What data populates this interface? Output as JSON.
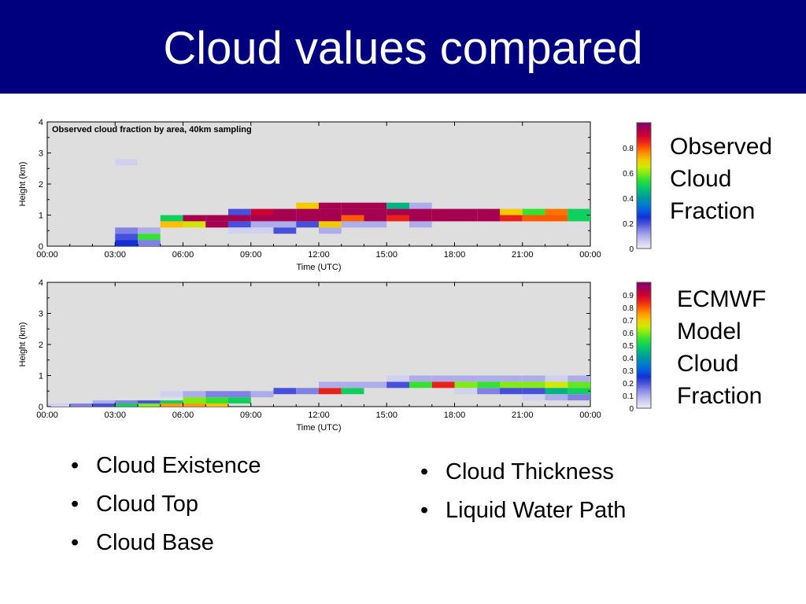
{
  "slide": {
    "title": "Cloud values compared"
  },
  "labels": {
    "observed": [
      "Observed",
      "Cloud",
      "Fraction"
    ],
    "ecmwf": [
      "ECMWF",
      "Model",
      "Cloud",
      "Fraction"
    ]
  },
  "bullets_left": [
    "Cloud Existence",
    "Cloud Top",
    "Cloud Base"
  ],
  "bullets_right": [
    "Cloud Thickness",
    "Liquid Water Path"
  ],
  "chart_data": [
    {
      "type": "heatmap",
      "title": "Observed cloud fraction by area, 40km sampling",
      "xlabel": "Time (UTC)",
      "ylabel": "Height (km)",
      "xlim": [
        0,
        24
      ],
      "ylim": [
        0,
        4
      ],
      "xticks": [
        "00:00",
        "03:00",
        "06:00",
        "09:00",
        "12:00",
        "15:00",
        "18:00",
        "21:00",
        "00:00"
      ],
      "yticks": [
        "0",
        "1",
        "2",
        "3",
        "4"
      ],
      "grid": false,
      "cell_width_hours": 1,
      "cells": [
        {
          "t": 3.5,
          "h": 2.6,
          "h2": 2.8,
          "v": 0.05
        },
        {
          "t": 3.5,
          "h": 0.4,
          "h2": 0.6,
          "v": 0.15
        },
        {
          "t": 3.5,
          "h": 0.2,
          "h2": 0.4,
          "v": 0.2
        },
        {
          "t": 3.5,
          "h": 0.0,
          "h2": 0.2,
          "v": 0.25
        },
        {
          "t": 4.5,
          "h": 0.4,
          "h2": 0.6,
          "v": 0.1
        },
        {
          "t": 4.5,
          "h": 0.2,
          "h2": 0.4,
          "v": 0.55
        },
        {
          "t": 4.5,
          "h": 0.0,
          "h2": 0.2,
          "v": 0.15
        },
        {
          "t": 5.5,
          "h": 0.8,
          "h2": 1.0,
          "v": 0.5
        },
        {
          "t": 5.5,
          "h": 0.6,
          "h2": 0.8,
          "v": 0.72
        },
        {
          "t": 6.5,
          "h": 0.8,
          "h2": 1.0,
          "v": 0.95
        },
        {
          "t": 6.5,
          "h": 0.6,
          "h2": 0.8,
          "v": 0.66
        },
        {
          "t": 7.5,
          "h": 0.8,
          "h2": 1.0,
          "v": 0.95
        },
        {
          "t": 7.5,
          "h": 0.6,
          "h2": 0.8,
          "v": 0.95
        },
        {
          "t": 8.5,
          "h": 1.0,
          "h2": 1.2,
          "v": 0.2
        },
        {
          "t": 8.5,
          "h": 0.8,
          "h2": 1.0,
          "v": 0.95
        },
        {
          "t": 8.5,
          "h": 0.6,
          "h2": 0.8,
          "v": 0.2
        },
        {
          "t": 8.5,
          "h": 0.4,
          "h2": 0.6,
          "v": 0.05
        },
        {
          "t": 9.5,
          "h": 1.0,
          "h2": 1.2,
          "v": 0.9
        },
        {
          "t": 9.5,
          "h": 0.8,
          "h2": 1.0,
          "v": 0.95
        },
        {
          "t": 9.5,
          "h": 0.6,
          "h2": 0.8,
          "v": 0.1
        },
        {
          "t": 9.5,
          "h": 0.4,
          "h2": 0.6,
          "v": 0.05
        },
        {
          "t": 10.5,
          "h": 1.0,
          "h2": 1.2,
          "v": 0.95
        },
        {
          "t": 10.5,
          "h": 0.8,
          "h2": 1.0,
          "v": 0.95
        },
        {
          "t": 10.5,
          "h": 0.6,
          "h2": 0.8,
          "v": 0.1
        },
        {
          "t": 10.5,
          "h": 0.4,
          "h2": 0.6,
          "v": 0.2
        },
        {
          "t": 11.5,
          "h": 1.2,
          "h2": 1.4,
          "v": 0.7
        },
        {
          "t": 11.5,
          "h": 1.0,
          "h2": 1.2,
          "v": 0.95
        },
        {
          "t": 11.5,
          "h": 0.8,
          "h2": 1.0,
          "v": 0.95
        },
        {
          "t": 11.5,
          "h": 0.6,
          "h2": 0.8,
          "v": 0.2
        },
        {
          "t": 12.5,
          "h": 1.2,
          "h2": 1.4,
          "v": 0.95
        },
        {
          "t": 12.5,
          "h": 1.0,
          "h2": 1.2,
          "v": 0.95
        },
        {
          "t": 12.5,
          "h": 0.8,
          "h2": 1.0,
          "v": 0.95
        },
        {
          "t": 12.5,
          "h": 0.6,
          "h2": 0.8,
          "v": 0.7
        },
        {
          "t": 12.5,
          "h": 0.4,
          "h2": 0.6,
          "v": 0.1
        },
        {
          "t": 13.5,
          "h": 1.2,
          "h2": 1.4,
          "v": 0.95
        },
        {
          "t": 13.5,
          "h": 1.0,
          "h2": 1.2,
          "v": 0.95
        },
        {
          "t": 13.5,
          "h": 0.8,
          "h2": 1.0,
          "v": 0.8
        },
        {
          "t": 13.5,
          "h": 0.6,
          "h2": 0.8,
          "v": 0.1
        },
        {
          "t": 14.5,
          "h": 1.2,
          "h2": 1.4,
          "v": 0.95
        },
        {
          "t": 14.5,
          "h": 1.0,
          "h2": 1.2,
          "v": 0.95
        },
        {
          "t": 14.5,
          "h": 0.8,
          "h2": 1.0,
          "v": 0.95
        },
        {
          "t": 14.5,
          "h": 0.6,
          "h2": 0.8,
          "v": 0.1
        },
        {
          "t": 15.5,
          "h": 1.2,
          "h2": 1.4,
          "v": 0.45
        },
        {
          "t": 15.5,
          "h": 1.0,
          "h2": 1.2,
          "v": 0.95
        },
        {
          "t": 15.5,
          "h": 0.8,
          "h2": 1.0,
          "v": 0.85
        },
        {
          "t": 16.5,
          "h": 1.2,
          "h2": 1.4,
          "v": 0.1
        },
        {
          "t": 16.5,
          "h": 1.0,
          "h2": 1.2,
          "v": 0.95
        },
        {
          "t": 16.5,
          "h": 0.8,
          "h2": 1.0,
          "v": 0.95
        },
        {
          "t": 16.5,
          "h": 0.6,
          "h2": 0.8,
          "v": 0.1
        },
        {
          "t": 17.5,
          "h": 1.0,
          "h2": 1.2,
          "v": 0.95
        },
        {
          "t": 17.5,
          "h": 0.8,
          "h2": 1.0,
          "v": 0.95
        },
        {
          "t": 18.5,
          "h": 1.0,
          "h2": 1.2,
          "v": 0.95
        },
        {
          "t": 18.5,
          "h": 0.8,
          "h2": 1.0,
          "v": 0.95
        },
        {
          "t": 19.5,
          "h": 1.0,
          "h2": 1.2,
          "v": 0.95
        },
        {
          "t": 19.5,
          "h": 0.8,
          "h2": 1.0,
          "v": 0.95
        },
        {
          "t": 20.5,
          "h": 1.0,
          "h2": 1.2,
          "v": 0.7
        },
        {
          "t": 20.5,
          "h": 0.8,
          "h2": 1.0,
          "v": 0.85
        },
        {
          "t": 21.5,
          "h": 1.0,
          "h2": 1.2,
          "v": 0.55
        },
        {
          "t": 21.5,
          "h": 0.8,
          "h2": 1.0,
          "v": 0.8
        },
        {
          "t": 22.5,
          "h": 1.0,
          "h2": 1.2,
          "v": 0.78
        },
        {
          "t": 22.5,
          "h": 0.8,
          "h2": 1.0,
          "v": 0.8
        },
        {
          "t": 23.5,
          "h": 1.0,
          "h2": 1.2,
          "v": 0.5
        },
        {
          "t": 23.5,
          "h": 0.8,
          "h2": 1.0,
          "v": 0.5
        }
      ],
      "colorbar": {
        "ticks": [
          "0",
          "0.2",
          "0.4",
          "0.6",
          "0.8"
        ],
        "range": [
          0,
          1
        ]
      }
    },
    {
      "type": "heatmap",
      "title": "",
      "xlabel": "Time (UTC)",
      "ylabel": "Height (km)",
      "xlim": [
        0,
        24
      ],
      "ylim": [
        0,
        4
      ],
      "xticks": [
        "00:00",
        "03:00",
        "06:00",
        "09:00",
        "12:00",
        "15:00",
        "18:00",
        "21:00",
        "00:00"
      ],
      "yticks": [
        "0",
        "1",
        "2",
        "3",
        "4"
      ],
      "grid": false,
      "cell_width_hours": 1,
      "cells": [
        {
          "t": 0.5,
          "h": 0.0,
          "h2": 0.1,
          "v": 0.05
        },
        {
          "t": 1.5,
          "h": 0.0,
          "h2": 0.1,
          "v": 0.15
        },
        {
          "t": 2.5,
          "h": 0.0,
          "h2": 0.1,
          "v": 0.2
        },
        {
          "t": 2.5,
          "h": 0.1,
          "h2": 0.2,
          "v": 0.1
        },
        {
          "t": 3.5,
          "h": 0.0,
          "h2": 0.1,
          "v": 0.5
        },
        {
          "t": 3.5,
          "h": 0.1,
          "h2": 0.2,
          "v": 0.15
        },
        {
          "t": 4.5,
          "h": 0.0,
          "h2": 0.1,
          "v": 0.6
        },
        {
          "t": 4.5,
          "h": 0.1,
          "h2": 0.2,
          "v": 0.2
        },
        {
          "t": 5.5,
          "h": 0.0,
          "h2": 0.1,
          "v": 0.75
        },
        {
          "t": 5.5,
          "h": 0.1,
          "h2": 0.2,
          "v": 0.5
        },
        {
          "t": 5.5,
          "h": 0.3,
          "h2": 0.5,
          "v": 0.05
        },
        {
          "t": 6.5,
          "h": 0.0,
          "h2": 0.1,
          "v": 0.75
        },
        {
          "t": 6.5,
          "h": 0.1,
          "h2": 0.3,
          "v": 0.6
        },
        {
          "t": 6.5,
          "h": 0.3,
          "h2": 0.5,
          "v": 0.1
        },
        {
          "t": 7.5,
          "h": 0.0,
          "h2": 0.1,
          "v": 0.72
        },
        {
          "t": 7.5,
          "h": 0.1,
          "h2": 0.3,
          "v": 0.55
        },
        {
          "t": 7.5,
          "h": 0.3,
          "h2": 0.5,
          "v": 0.15
        },
        {
          "t": 8.5,
          "h": 0.1,
          "h2": 0.3,
          "v": 0.5
        },
        {
          "t": 8.5,
          "h": 0.3,
          "h2": 0.5,
          "v": 0.15
        },
        {
          "t": 9.5,
          "h": 0.3,
          "h2": 0.5,
          "v": 0.1
        },
        {
          "t": 10.5,
          "h": 0.4,
          "h2": 0.6,
          "v": 0.2
        },
        {
          "t": 11.5,
          "h": 0.4,
          "h2": 0.6,
          "v": 0.15
        },
        {
          "t": 12.5,
          "h": 0.4,
          "h2": 0.6,
          "v": 0.85
        },
        {
          "t": 12.5,
          "h": 0.6,
          "h2": 0.8,
          "v": 0.1
        },
        {
          "t": 13.5,
          "h": 0.4,
          "h2": 0.6,
          "v": 0.5
        },
        {
          "t": 13.5,
          "h": 0.6,
          "h2": 0.8,
          "v": 0.1
        },
        {
          "t": 14.5,
          "h": 0.6,
          "h2": 0.8,
          "v": 0.1
        },
        {
          "t": 15.5,
          "h": 0.6,
          "h2": 0.8,
          "v": 0.2
        },
        {
          "t": 15.5,
          "h": 0.8,
          "h2": 1.0,
          "v": 0.05
        },
        {
          "t": 16.5,
          "h": 0.6,
          "h2": 0.8,
          "v": 0.55
        },
        {
          "t": 16.5,
          "h": 0.8,
          "h2": 1.0,
          "v": 0.1
        },
        {
          "t": 17.5,
          "h": 0.6,
          "h2": 0.8,
          "v": 0.85
        },
        {
          "t": 17.5,
          "h": 0.8,
          "h2": 1.0,
          "v": 0.1
        },
        {
          "t": 18.5,
          "h": 0.6,
          "h2": 0.8,
          "v": 0.6
        },
        {
          "t": 18.5,
          "h": 0.8,
          "h2": 1.0,
          "v": 0.1
        },
        {
          "t": 18.5,
          "h": 0.4,
          "h2": 0.6,
          "v": 0.05
        },
        {
          "t": 19.5,
          "h": 0.6,
          "h2": 0.8,
          "v": 0.55
        },
        {
          "t": 19.5,
          "h": 0.4,
          "h2": 0.6,
          "v": 0.15
        },
        {
          "t": 19.5,
          "h": 0.8,
          "h2": 1.0,
          "v": 0.1
        },
        {
          "t": 20.5,
          "h": 0.6,
          "h2": 0.8,
          "v": 0.6
        },
        {
          "t": 20.5,
          "h": 0.4,
          "h2": 0.6,
          "v": 0.2
        },
        {
          "t": 20.5,
          "h": 0.8,
          "h2": 1.0,
          "v": 0.1
        },
        {
          "t": 21.5,
          "h": 0.6,
          "h2": 0.8,
          "v": 0.6
        },
        {
          "t": 21.5,
          "h": 0.4,
          "h2": 0.6,
          "v": 0.2
        },
        {
          "t": 21.5,
          "h": 0.2,
          "h2": 0.4,
          "v": 0.05
        },
        {
          "t": 21.5,
          "h": 0.8,
          "h2": 1.0,
          "v": 0.1
        },
        {
          "t": 22.5,
          "h": 0.6,
          "h2": 0.8,
          "v": 0.65
        },
        {
          "t": 22.5,
          "h": 0.4,
          "h2": 0.6,
          "v": 0.45
        },
        {
          "t": 22.5,
          "h": 0.2,
          "h2": 0.4,
          "v": 0.1
        },
        {
          "t": 22.5,
          "h": 0.8,
          "h2": 1.0,
          "v": 0.05
        },
        {
          "t": 23.5,
          "h": 0.6,
          "h2": 0.8,
          "v": 0.58
        },
        {
          "t": 23.5,
          "h": 0.4,
          "h2": 0.6,
          "v": 0.5
        },
        {
          "t": 23.5,
          "h": 0.2,
          "h2": 0.4,
          "v": 0.15
        },
        {
          "t": 23.5,
          "h": 0.8,
          "h2": 1.0,
          "v": 0.1
        }
      ],
      "colorbar": {
        "ticks": [
          "0",
          "0.1",
          "0.2",
          "0.3",
          "0.4",
          "0.5",
          "0.6",
          "0.7",
          "0.8",
          "0.9"
        ],
        "range": [
          0,
          1
        ]
      }
    }
  ]
}
